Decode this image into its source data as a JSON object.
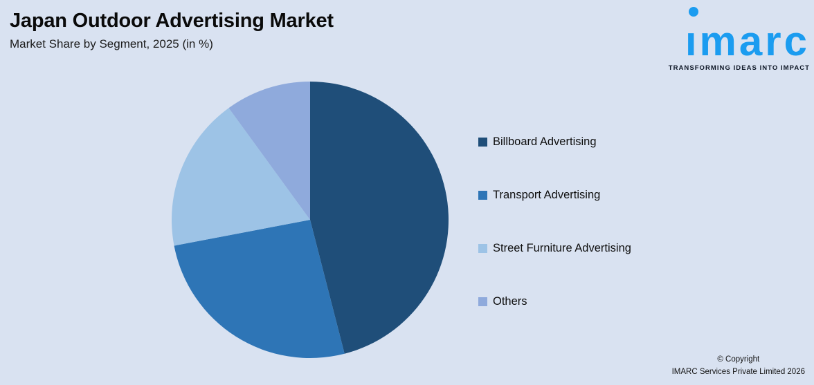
{
  "header": {
    "title": "Japan Outdoor Advertising Market",
    "subtitle": "Market Share by Segment, 2025 (in %)"
  },
  "logo": {
    "brand": "imarc",
    "brand_display": "ımarc",
    "tagline": "TRANSFORMING IDEAS INTO IMPACT",
    "brand_color": "#1B9CF0"
  },
  "chart_data": {
    "type": "pie",
    "title": "Japan Outdoor Advertising Market",
    "subtitle": "Market Share by Segment, 2025 (in %)",
    "categories": [
      "Billboard Advertising",
      "Transport Advertising",
      "Street Furniture Advertising",
      "Others"
    ],
    "values": [
      46,
      26,
      18,
      10
    ],
    "unit": "%",
    "colors": [
      "#1F4E79",
      "#2E75B6",
      "#9DC3E6",
      "#8FAADC"
    ],
    "start_angle": "12-o-clock",
    "direction": "clockwise",
    "data_labels": false,
    "legend_position": "right"
  },
  "legend": {
    "items": [
      {
        "label": "Billboard Advertising",
        "color": "#1F4E79"
      },
      {
        "label": "Transport Advertising",
        "color": "#2E75B6"
      },
      {
        "label": "Street Furniture Advertising",
        "color": "#9DC3E6"
      },
      {
        "label": "Others",
        "color": "#8FAADC"
      }
    ]
  },
  "footer": {
    "copyright_line1": "© Copyright",
    "copyright_line2": "IMARC Services Private Limited 2026"
  },
  "colors": {
    "background": "#D9E2F1",
    "title_text": "#0A0A0A",
    "body_text": "#141414"
  }
}
